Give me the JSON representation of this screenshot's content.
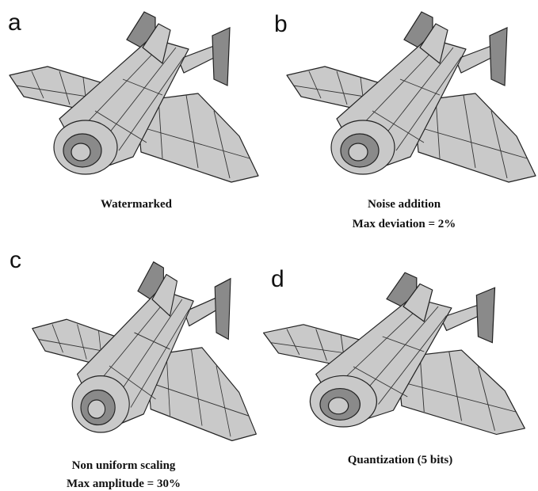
{
  "panels": [
    {
      "letter": "a",
      "caption": [
        "Watermarked"
      ]
    },
    {
      "letter": "b",
      "caption": [
        "Noise addition",
        "Max deviation = 2%"
      ]
    },
    {
      "letter": "c",
      "caption": [
        "Non uniform scaling",
        "Max amplitude = 30%"
      ]
    },
    {
      "letter": "d",
      "caption": [
        "Quantization (5 bits)"
      ]
    }
  ]
}
